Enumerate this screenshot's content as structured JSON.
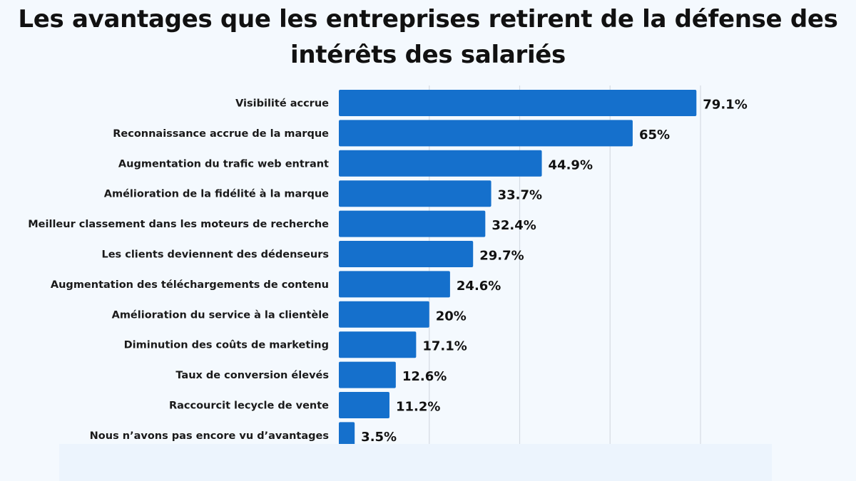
{
  "chart_data": {
    "type": "bar",
    "orientation": "horizontal",
    "title": "Les avantages que les entreprises retirent de la défense des intérêts des salariés",
    "categories": [
      "Visibilité accrue",
      "Reconnaissance accrue de la marque",
      "Augmentation du trafic web entrant",
      "Amélioration de la fidélité à la marque",
      "Meilleur classement dans les moteurs de recherche",
      "Les clients deviennent des dédenseurs",
      "Augmentation des téléchargements de contenu",
      "Amélioration du service à la clientèle",
      "Diminution des coûts de marketing",
      "Taux de conversion élevés",
      "Raccourcit lecycle de vente",
      "Nous n’avons pas encore vu d’avantages"
    ],
    "values": [
      79.1,
      65,
      44.9,
      33.7,
      32.4,
      29.7,
      24.6,
      20,
      17.1,
      12.6,
      11.2,
      3.5
    ],
    "value_labels": [
      "79.1%",
      "65%",
      "44.9%",
      "33.7%",
      "32.4%",
      "29.7%",
      "24.6%",
      "20%",
      "17.1%",
      "12.6%",
      "11.2%",
      "3.5%"
    ],
    "xlim": [
      0,
      80
    ],
    "grid": true,
    "gridlines": [
      20,
      40,
      60,
      80
    ],
    "bar_color": "#1570cc",
    "background_color": "#f4f9fe"
  }
}
